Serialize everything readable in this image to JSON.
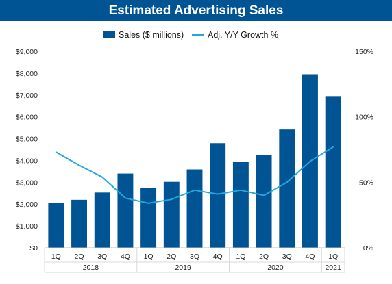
{
  "chart_data": {
    "type": "bar",
    "title": "Estimated Advertising Sales",
    "categories": [
      "1Q",
      "2Q",
      "3Q",
      "4Q",
      "1Q",
      "2Q",
      "3Q",
      "4Q",
      "1Q",
      "2Q",
      "3Q",
      "4Q",
      "1Q"
    ],
    "year_groups": [
      {
        "label": "2018",
        "count": 4
      },
      {
        "label": "2019",
        "count": 4
      },
      {
        "label": "2020",
        "count": 4
      },
      {
        "label": "2021",
        "count": 1
      }
    ],
    "series": [
      {
        "name": "Sales ($ millions)",
        "type": "bar",
        "axis": "left",
        "values": [
          2050,
          2200,
          2530,
          3400,
          2750,
          3020,
          3590,
          4790,
          3930,
          4240,
          5420,
          7950,
          6920
        ]
      },
      {
        "name": "Adj. Y/Y Growth %",
        "type": "line",
        "axis": "right",
        "values": [
          73,
          63,
          54,
          38,
          34,
          37,
          44,
          41,
          44,
          40,
          50,
          66,
          77
        ]
      }
    ],
    "y_left": {
      "min": 0,
      "max": 9000,
      "ticks": [
        "$0",
        "$1,000",
        "$2,000",
        "$3,000",
        "$4,000",
        "$5,000",
        "$6,000",
        "$7,000",
        "$8,000",
        "$9,000"
      ]
    },
    "y_right": {
      "min": 0,
      "max": 150,
      "ticks": [
        "0%",
        "50%",
        "100%",
        "150%"
      ]
    },
    "grid": false,
    "legend": "top-center",
    "colors": {
      "bar": "#005493",
      "line": "#22a7e0",
      "title_bg": "#005493"
    }
  }
}
